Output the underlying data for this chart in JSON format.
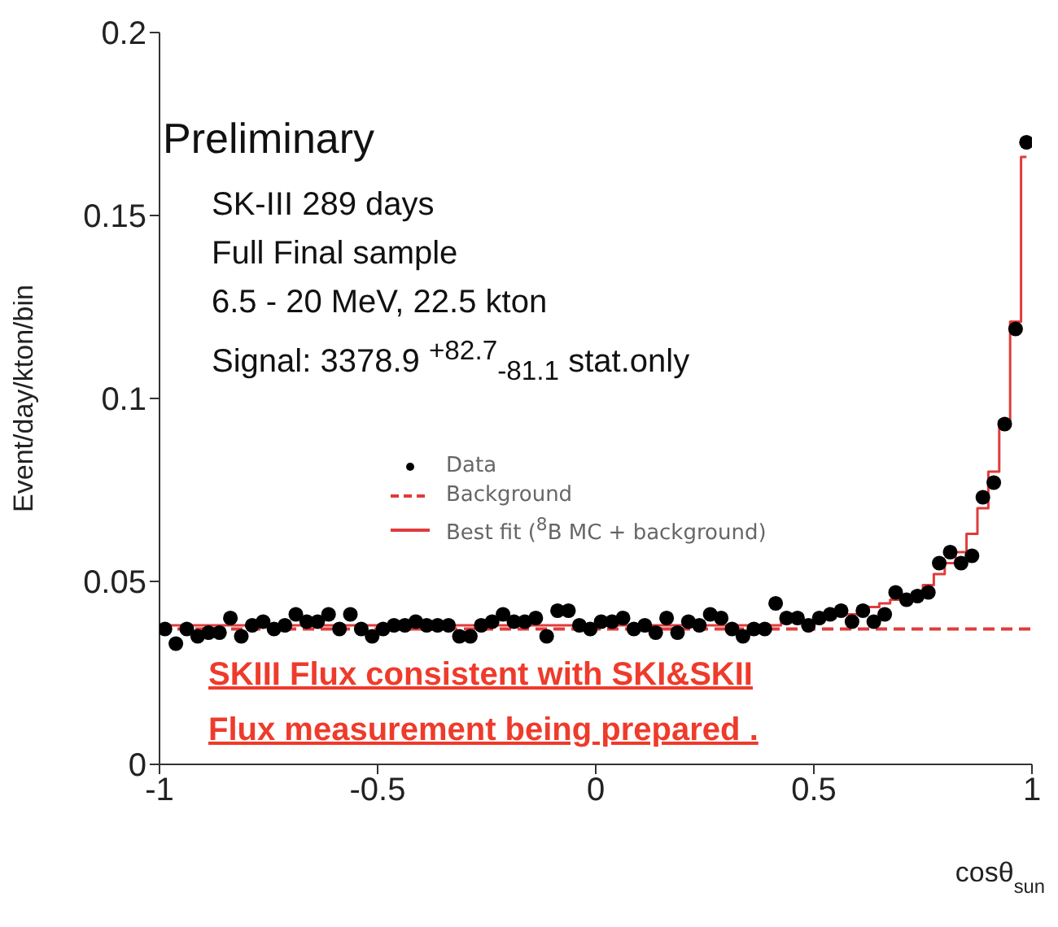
{
  "chart_data": {
    "type": "scatter",
    "xlabel": "cosθ$_{sun}$",
    "ylabel": "Event/day/kton/bin",
    "xlim": [
      -1,
      1
    ],
    "xticks": [
      -1,
      -0.5,
      0,
      0.5,
      1
    ],
    "ylim": [
      0,
      0.2
    ],
    "yticks": [
      0,
      0.05,
      0.1,
      0.15,
      0.2
    ],
    "grid": false,
    "legend": "center",
    "annotations": [
      "Preliminary",
      "SK-III 289 days",
      "Full Final sample",
      "6.5 - 20 MeV,  22.5 kton",
      "Signal: 3378.9 $^{+82.7}$$_{-81.1}$ stat.only",
      "SKIII Flux consistent with SKI&SKII",
      "Flux measurement being prepared ."
    ],
    "series": [
      {
        "name": "Data",
        "marker": "circle",
        "color": "#000000",
        "x": [
          -0.9875,
          -0.9625,
          -0.9375,
          -0.9125,
          -0.8875,
          -0.8625,
          -0.8375,
          -0.8125,
          -0.7875,
          -0.7625,
          -0.7375,
          -0.7125,
          -0.6875,
          -0.6625,
          -0.6375,
          -0.6125,
          -0.5875,
          -0.5625,
          -0.5375,
          -0.5125,
          -0.4875,
          -0.4625,
          -0.4375,
          -0.4125,
          -0.3875,
          -0.3625,
          -0.3375,
          -0.3125,
          -0.2875,
          -0.2625,
          -0.2375,
          -0.2125,
          -0.1875,
          -0.1625,
          -0.1375,
          -0.1125,
          -0.0875,
          -0.0625,
          -0.0375,
          -0.0125,
          0.0125,
          0.0375,
          0.0625,
          0.0875,
          0.1125,
          0.1375,
          0.1625,
          0.1875,
          0.2125,
          0.2375,
          0.2625,
          0.2875,
          0.3125,
          0.3375,
          0.3625,
          0.3875,
          0.4125,
          0.4375,
          0.4625,
          0.4875,
          0.5125,
          0.5375,
          0.5625,
          0.5875,
          0.6125,
          0.6375,
          0.6625,
          0.6875,
          0.7125,
          0.7375,
          0.7625,
          0.7875,
          0.8125,
          0.8375,
          0.8625,
          0.8875,
          0.9125,
          0.9375,
          0.9625,
          0.9875
        ],
        "values": [
          0.037,
          0.033,
          0.037,
          0.035,
          0.036,
          0.036,
          0.04,
          0.035,
          0.038,
          0.039,
          0.037,
          0.038,
          0.041,
          0.039,
          0.039,
          0.041,
          0.037,
          0.041,
          0.037,
          0.035,
          0.037,
          0.038,
          0.038,
          0.039,
          0.038,
          0.038,
          0.038,
          0.035,
          0.035,
          0.038,
          0.039,
          0.041,
          0.039,
          0.039,
          0.04,
          0.035,
          0.042,
          0.042,
          0.038,
          0.037,
          0.039,
          0.039,
          0.04,
          0.037,
          0.038,
          0.036,
          0.04,
          0.036,
          0.039,
          0.038,
          0.041,
          0.04,
          0.037,
          0.035,
          0.037,
          0.037,
          0.044,
          0.04,
          0.04,
          0.038,
          0.04,
          0.041,
          0.042,
          0.039,
          0.042,
          0.039,
          0.041,
          0.047,
          0.045,
          0.046,
          0.047,
          0.055,
          0.058,
          0.055,
          0.057,
          0.073,
          0.077,
          0.093,
          0.119,
          0.17
        ]
      },
      {
        "name": "Background",
        "type": "line",
        "marker": "none",
        "line_style": "dashed",
        "color": "#e03c3c",
        "x": [
          -1,
          1
        ],
        "values": [
          0.037,
          0.037
        ]
      },
      {
        "name": "Best fit ($^{8}$B MC + background)",
        "type": "step",
        "marker": "none",
        "color": "#e03c3c",
        "x": [
          -0.9875,
          -0.9625,
          -0.9375,
          -0.9125,
          -0.8875,
          -0.8625,
          -0.8375,
          -0.8125,
          -0.7875,
          -0.7625,
          -0.7375,
          -0.7125,
          -0.6875,
          -0.6625,
          -0.6375,
          -0.6125,
          -0.5875,
          -0.5625,
          -0.5375,
          -0.5125,
          -0.4875,
          -0.4625,
          -0.4375,
          -0.4125,
          -0.3875,
          -0.3625,
          -0.3375,
          -0.3125,
          -0.2875,
          -0.2625,
          -0.2375,
          -0.2125,
          -0.1875,
          -0.1625,
          -0.1375,
          -0.1125,
          -0.0875,
          -0.0625,
          -0.0375,
          -0.0125,
          0.0125,
          0.0375,
          0.0625,
          0.0875,
          0.1125,
          0.1375,
          0.1625,
          0.1875,
          0.2125,
          0.2375,
          0.2625,
          0.2875,
          0.3125,
          0.3375,
          0.3625,
          0.3875,
          0.4125,
          0.4375,
          0.4625,
          0.4875,
          0.5125,
          0.5375,
          0.5625,
          0.5875,
          0.6125,
          0.6375,
          0.6625,
          0.6875,
          0.7125,
          0.7375,
          0.7625,
          0.7875,
          0.8125,
          0.8375,
          0.8625,
          0.8875,
          0.9125,
          0.9375,
          0.9625,
          0.9875
        ],
        "values": [
          0.038,
          0.038,
          0.038,
          0.038,
          0.038,
          0.038,
          0.038,
          0.038,
          0.038,
          0.038,
          0.038,
          0.038,
          0.038,
          0.038,
          0.038,
          0.038,
          0.038,
          0.038,
          0.038,
          0.038,
          0.038,
          0.038,
          0.038,
          0.038,
          0.038,
          0.038,
          0.038,
          0.038,
          0.038,
          0.038,
          0.038,
          0.038,
          0.038,
          0.038,
          0.038,
          0.038,
          0.038,
          0.038,
          0.038,
          0.038,
          0.038,
          0.038,
          0.038,
          0.038,
          0.038,
          0.038,
          0.038,
          0.038,
          0.038,
          0.038,
          0.038,
          0.038,
          0.038,
          0.038,
          0.038,
          0.038,
          0.038,
          0.039,
          0.039,
          0.039,
          0.04,
          0.04,
          0.041,
          0.041,
          0.042,
          0.043,
          0.044,
          0.045,
          0.046,
          0.047,
          0.049,
          0.052,
          0.055,
          0.058,
          0.063,
          0.07,
          0.08,
          0.094,
          0.121,
          0.166
        ]
      }
    ]
  }
}
